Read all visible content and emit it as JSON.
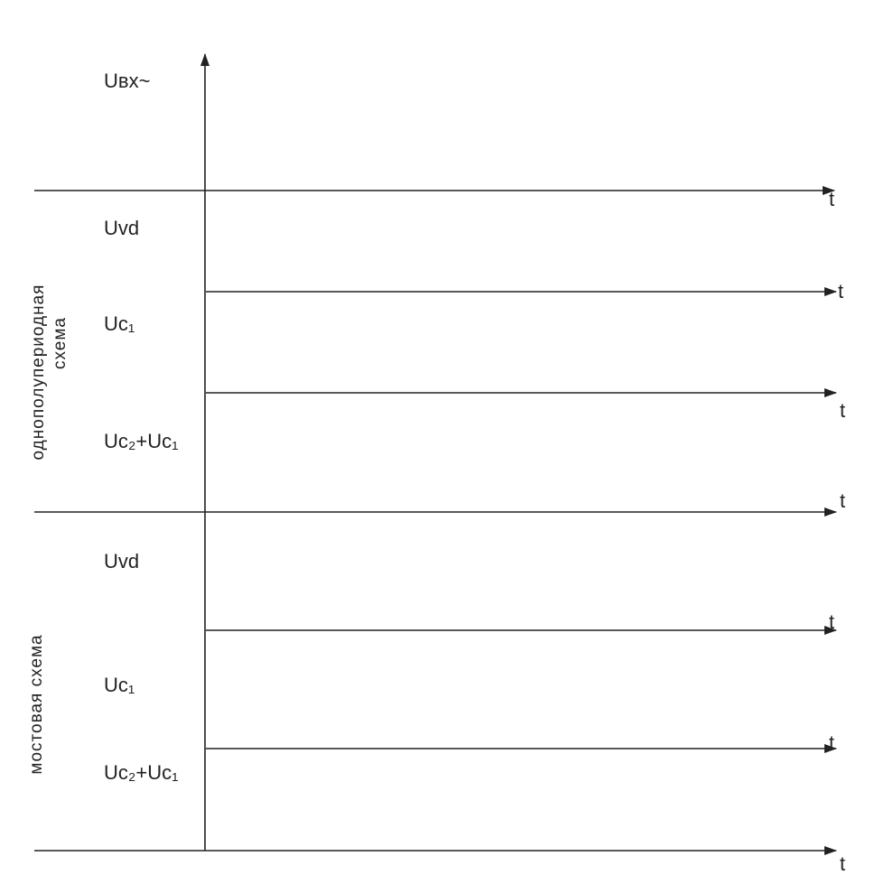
{
  "signals": [
    {
      "label": "Uвх~"
    },
    {
      "label": "Uvd"
    },
    {
      "label": "Uc₁"
    },
    {
      "label": "Uc₂+Uc₁"
    },
    {
      "label": "Uvd"
    },
    {
      "label": "Uc₁"
    },
    {
      "label": "Uc₂+Uc₁"
    }
  ],
  "time_axes": [
    "t",
    "t",
    "t",
    "t",
    "t",
    "t",
    "t"
  ],
  "sections": [
    {
      "lines": [
        "однополупериодная",
        "схема"
      ]
    },
    {
      "lines": [
        "мостовая схема"
      ]
    }
  ]
}
